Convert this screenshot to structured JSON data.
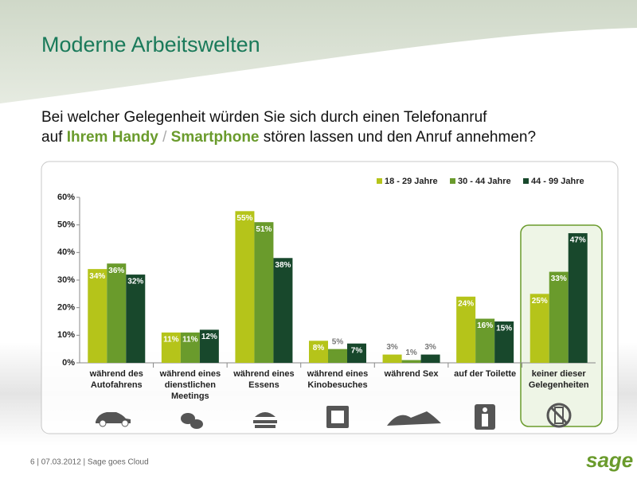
{
  "slide": {
    "title": "Moderne Arbeitswelten",
    "question": [
      [
        "Bei welcher Gelegenheit würden Sie sich durch einen Telefonanruf"
      ],
      [
        "auf ",
        "Ihrem Handy",
        " / ",
        "Smartphone",
        " stören lassen und den Anruf annehmen?"
      ]
    ],
    "footer": "6 | 07.03.2012 | Sage goes Cloud",
    "logo": "sage"
  },
  "chart_data": {
    "type": "bar",
    "categories": [
      [
        "während des",
        "Autofahrens"
      ],
      [
        "während eines",
        "dienstlichen",
        "Meetings"
      ],
      [
        "während eines",
        "Essens"
      ],
      [
        "während eines",
        "Kinobesuches"
      ],
      [
        "während Sex"
      ],
      [
        "auf der Toilette"
      ],
      [
        "keiner dieser",
        "Gelegenheiten"
      ]
    ],
    "series": [
      {
        "name": "18 - 29 Jahre",
        "color": "#b5c41a",
        "values": [
          34,
          11,
          55,
          8,
          3,
          24,
          25
        ],
        "value_labels": [
          "34%",
          "11%",
          "55%",
          "8%",
          "3%",
          "24%",
          "25%"
        ]
      },
      {
        "name": "30 - 44 Jahre",
        "color": "#6a9b2c",
        "values": [
          36,
          11,
          51,
          5,
          1,
          16,
          33
        ],
        "value_labels": [
          "36%",
          "11%",
          "51%",
          "5%",
          "1%",
          "16%",
          "33%"
        ]
      },
      {
        "name": "44 - 99 Jahre",
        "color": "#18482c",
        "values": [
          32,
          12,
          38,
          7,
          3,
          15,
          47
        ],
        "value_labels": [
          "32%",
          "12%",
          "38%",
          "7%",
          "3%",
          "15%",
          "47%"
        ]
      }
    ],
    "ylim": [
      0,
      60
    ],
    "yticks": [
      {
        "value": 0,
        "label": "0%"
      },
      {
        "value": 10,
        "label": "10%"
      },
      {
        "value": 20,
        "label": "20%"
      },
      {
        "value": 30,
        "label": "30%"
      },
      {
        "value": 40,
        "label": "40%"
      },
      {
        "value": 50,
        "label": "50%"
      },
      {
        "value": 60,
        "label": "60%"
      }
    ],
    "legend": "top-right"
  }
}
